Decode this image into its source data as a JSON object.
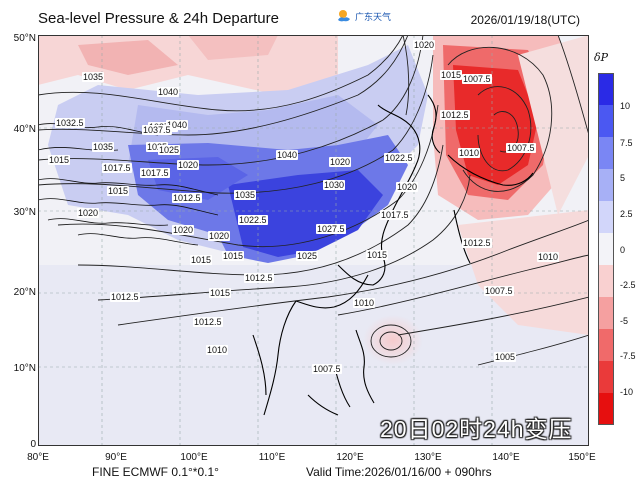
{
  "header": {
    "title": "Sea-level Pressure & 24h Departure",
    "logo_text": "广东天气",
    "timestamp": "2026/01/19/18(UTC)"
  },
  "axes": {
    "lat_labels": [
      "50°N",
      "40°N",
      "30°N",
      "20°N",
      "10°N",
      "0"
    ],
    "lon_labels": [
      "80°E",
      "90°E",
      "100°E",
      "110°E",
      "120°E",
      "130°E",
      "140°E",
      "150°E"
    ]
  },
  "colorbar": {
    "title": "δP",
    "ticks": [
      "10",
      "7.5",
      "5",
      "2.5",
      "0",
      "-2.5",
      "-5",
      "-7.5",
      "-10"
    ],
    "colors": [
      "#2a2ae6",
      "#4b58f2",
      "#7a86f4",
      "#a7b0f6",
      "#d2d6fa",
      "#f3f3f8",
      "#f9d0d0",
      "#f5a0a0",
      "#f06a6a",
      "#ea3a3a",
      "#e60f0f"
    ]
  },
  "isobar_labels": [
    "1035",
    "1040",
    "1032.5",
    "1035",
    "1037.5",
    "1040",
    "1015",
    "1017.5",
    "1020",
    "1025",
    "1017.5",
    "1012.5",
    "1020",
    "1015",
    "1020",
    "1035",
    "1040",
    "1022.5",
    "1020",
    "1015",
    "1025",
    "1030",
    "1027.5",
    "1022.5",
    "1020",
    "1017.5",
    "1015",
    "1012.5",
    "1010",
    "1007.5",
    "1012.5",
    "1015",
    "1012.5",
    "1010",
    "1007.5",
    "1005",
    "1020",
    "1015",
    "1007.5",
    "1012.5",
    "1010",
    "1007.5",
    "1025",
    "1012.5",
    "1020",
    "1037.5",
    "1010",
    "1015"
  ],
  "footer": {
    "model": "FINE ECMWF 0.1°*0.1°",
    "valid_time": "Valid Time:2026/01/16/00 + 090hrs"
  },
  "overlay": {
    "caption": "20日02时24h变压"
  }
}
